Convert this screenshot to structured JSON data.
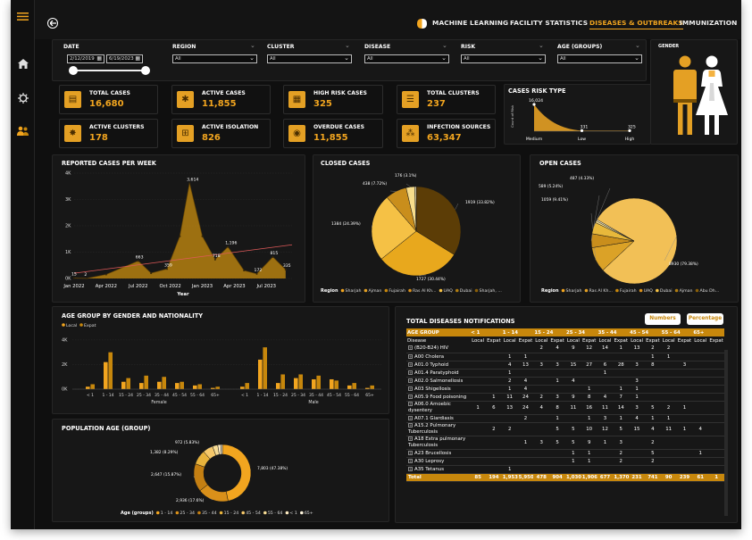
{
  "nav": {
    "tabs": [
      {
        "label": "MACHINE LEARNING",
        "active": false
      },
      {
        "label": "FACILITY STATISTICS",
        "active": false
      },
      {
        "label": "DISEASES & OUTBREAKS",
        "active": true
      },
      {
        "label": "IMMUNIZATION",
        "active": false
      }
    ]
  },
  "filters": {
    "date_label": "DATE",
    "date_from": "2/12/2019",
    "date_to": "6/19/2023",
    "dropdowns": [
      {
        "label": "REGION",
        "value": "All"
      },
      {
        "label": "CLUSTER",
        "value": "All"
      },
      {
        "label": "DISEASE",
        "value": "All"
      },
      {
        "label": "RISK",
        "value": "All"
      },
      {
        "label": "AGE (GROUPS)",
        "value": "All"
      }
    ]
  },
  "gender_panel": {
    "title": "GENDER"
  },
  "kpis": [
    {
      "label": "TOTAL CASES",
      "value": "16,680",
      "icon": "document-icon"
    },
    {
      "label": "ACTIVE CASES",
      "value": "11,855",
      "icon": "virus-icon"
    },
    {
      "label": "HIGH RISK CASES",
      "value": "325",
      "icon": "warning-icon"
    },
    {
      "label": "TOTAL CLUSTERS",
      "value": "237",
      "icon": "clipboard-icon"
    },
    {
      "label": "ACTIVE CLUSTERS",
      "value": "178",
      "icon": "cluster-icon"
    },
    {
      "label": "ACTIVE ISOLATION",
      "value": "826",
      "icon": "isolation-icon"
    },
    {
      "label": "OVERDUE CASES",
      "value": "11,855",
      "icon": "alarm-icon"
    },
    {
      "label": "INFECTION SOURCES",
      "value": "63,347",
      "icon": "source-icon"
    }
  ],
  "risk_chart": {
    "title": "CASES RISK TYPE",
    "ylabel": "Count of Risk",
    "categories": [
      "Medium",
      "Low",
      "High"
    ],
    "values": [
      16024,
      331,
      325
    ],
    "value_labels": [
      "16,024",
      "331",
      "325"
    ]
  },
  "weekly_chart": {
    "title": "REPORTED CASES PER WEEK",
    "xlabel": "Year",
    "y_ticks": [
      "0K",
      "1K",
      "2K",
      "3K",
      "4K"
    ],
    "x_ticks": [
      "Jan 2022",
      "Apr 2022",
      "Jul 2022",
      "Oct 2022",
      "Jan 2023",
      "Apr 2023",
      "Jul 2023"
    ],
    "points": [
      [
        0,
        15
      ],
      [
        0.4,
        2
      ],
      [
        1,
        150
      ],
      [
        2,
        663
      ],
      [
        2.4,
        200
      ],
      [
        2.9,
        359
      ],
      [
        3.3,
        1600
      ],
      [
        3.6,
        3614
      ],
      [
        4.0,
        1600
      ],
      [
        4.4,
        718
      ],
      [
        4.8,
        1196
      ],
      [
        5.3,
        300
      ],
      [
        5.7,
        172
      ],
      [
        6.2,
        815
      ],
      [
        6.6,
        335
      ]
    ],
    "point_labels": [
      {
        "i": 0,
        "text": "15"
      },
      {
        "i": 1,
        "text": "2"
      },
      {
        "i": 3,
        "text": "663"
      },
      {
        "i": 5,
        "text": "359"
      },
      {
        "i": 7,
        "text": "3,614"
      },
      {
        "i": 9,
        "text": "718"
      },
      {
        "i": 10,
        "text": "1,196"
      },
      {
        "i": 12,
        "text": "172"
      },
      {
        "i": 13,
        "text": "815"
      },
      {
        "i": 14,
        "text": "335"
      }
    ],
    "trend": [
      [
        0,
        200
      ],
      [
        6.8,
        1280
      ]
    ],
    "x_max": 6.8,
    "y_max": 4000
  },
  "closed_cases": {
    "title": "CLOSED CASES",
    "legend_title": "Region",
    "legend": [
      "Sharjah",
      "Ajman",
      "Fujairah",
      "Ras Al Kh...",
      "UAQ",
      "Dubai",
      "Sharjah, ..."
    ],
    "slices": [
      {
        "value": 1919,
        "label": "1919 (33.82%)",
        "color": "#5c3d06"
      },
      {
        "value": 1727,
        "label": "1727 (30.44%)",
        "color": "#e8a81d"
      },
      {
        "value": 1384,
        "label": "1384 (24.39%)",
        "color": "#f5c145"
      },
      {
        "value": 438,
        "label": "438 (7.72%)",
        "color": "#c98e1c"
      },
      {
        "value": 176,
        "label": "176 (3.1%)",
        "color": "#f7dd8b"
      },
      {
        "value": 30,
        "label": "",
        "color": "#fff3c8"
      }
    ]
  },
  "open_cases": {
    "title": "OPEN CASES",
    "legend_title": "Region",
    "legend": [
      "Sharjah",
      "Ras Al Kh...",
      "Fujairah",
      "UAQ",
      "Dubai",
      "Ajman",
      "Abu Dh..."
    ],
    "slices": [
      {
        "value": 8930,
        "label": "8930 (79.38%)",
        "color": "#f2c056"
      },
      {
        "value": 1059,
        "label": "1059 (9.41%)",
        "color": "#dba227"
      },
      {
        "value": 589,
        "label": "589 (5.24%)",
        "color": "#c98e1c"
      },
      {
        "value": 487,
        "label": "487 (4.33%)",
        "color": "#e8b83b"
      },
      {
        "value": 80,
        "label": "",
        "color": "#f7dd8b"
      },
      {
        "value": 60,
        "label": "",
        "color": "#fff3c8"
      }
    ]
  },
  "age_gender_chart": {
    "title": "AGE GROUP BY GENDER AND NATIONALITY",
    "legend": [
      {
        "name": "Local",
        "color": "#f2a51f"
      },
      {
        "name": "Expat",
        "color": "#c7870c"
      }
    ],
    "y_ticks": [
      "0K",
      "2K",
      "4K"
    ],
    "categories": [
      "< 1",
      "1 - 14",
      "15 - 24",
      "25 - 34",
      "35 - 44",
      "45 - 54",
      "55 - 64",
      "65+"
    ],
    "groups": [
      "Female",
      "Male"
    ],
    "female_local": [
      0.2,
      2.2,
      0.6,
      0.5,
      0.6,
      0.5,
      0.3,
      0.1
    ],
    "female_expat": [
      0.4,
      3.0,
      0.9,
      1.1,
      1.0,
      0.6,
      0.4,
      0.2
    ],
    "male_local": [
      0.2,
      2.4,
      0.5,
      0.9,
      0.8,
      0.8,
      0.3,
      0.1
    ],
    "male_expat": [
      0.5,
      3.4,
      1.2,
      1.2,
      1.1,
      0.7,
      0.5,
      0.3
    ],
    "y_max": 4.5
  },
  "population_age": {
    "title": "POPULATION AGE (GROUP)",
    "legend_title": "Age (groups)",
    "legend": [
      "1 - 14",
      "25 - 34",
      "35 - 44",
      "15 - 24",
      "45 - 54",
      "55 - 64",
      "< 1",
      "65+"
    ],
    "slices": [
      {
        "value": 7803,
        "label": "7,803 (47.38%)",
        "color": "#f2a51f"
      },
      {
        "value": 2936,
        "label": "2,936 (17.6%)",
        "color": "#d9901a"
      },
      {
        "value": 2647,
        "label": "2,647 (15.87%)",
        "color": "#c47f12"
      },
      {
        "value": 1382,
        "label": "1,382 (8.29%)",
        "color": "#e8b33c"
      },
      {
        "value": 972,
        "label": "972 (5.83%)",
        "color": "#f5c86a"
      },
      {
        "value": 500,
        "label": "",
        "color": "#f7dc95"
      },
      {
        "value": 300,
        "label": "",
        "color": "#fbe9c0"
      },
      {
        "value": 140,
        "label": "",
        "color": "#fff6dd"
      }
    ]
  },
  "notifications": {
    "title": "TOTAL DISEASES NOTIFICATIONS",
    "btn_numbers": "Numbers",
    "btn_percentage": "Percentage",
    "header_age": "AGE GROUP",
    "header_disease": "Disease",
    "age_groups": [
      "< 1",
      "1 - 14",
      "15 - 24",
      "25 - 34",
      "35 - 44",
      "45 - 54",
      "55 - 64",
      "65+"
    ],
    "sub_headers": [
      "Local",
      "Expat"
    ],
    "rows": [
      {
        "disease": "(B20-B24) HIV",
        "vals": [
          "",
          "",
          "",
          "",
          "2",
          "4",
          "9",
          "12",
          "14",
          "1",
          "13",
          "2",
          "2",
          "",
          "",
          ""
        ]
      },
      {
        "disease": "A00 Cholera",
        "vals": [
          "",
          "",
          "1",
          "1",
          "",
          "",
          "",
          "",
          "",
          "",
          "",
          "1",
          "1",
          "",
          "",
          ""
        ]
      },
      {
        "disease": "A01.0 Typhoid",
        "vals": [
          "",
          "",
          "4",
          "13",
          "3",
          "3",
          "15",
          "27",
          "6",
          "28",
          "3",
          "8",
          "",
          "3",
          "",
          ""
        ]
      },
      {
        "disease": "A01.4 Paratyphoid",
        "vals": [
          "",
          "",
          "1",
          "",
          "",
          "",
          "",
          "",
          "1",
          "",
          "",
          "",
          "",
          "",
          "",
          ""
        ]
      },
      {
        "disease": "A02.0 Salmonellosis",
        "vals": [
          "",
          "",
          "2",
          "4",
          "",
          "1",
          "4",
          "",
          "",
          "",
          "3",
          "",
          "",
          "",
          "",
          ""
        ]
      },
      {
        "disease": "A03 Shigellosis",
        "vals": [
          "",
          "",
          "1",
          "4",
          "",
          "",
          "",
          "1",
          "",
          "1",
          "1",
          "",
          "",
          "",
          "",
          ""
        ]
      },
      {
        "disease": "A05.9 Food poisoning",
        "vals": [
          "",
          "1",
          "11",
          "24",
          "2",
          "3",
          "9",
          "8",
          "4",
          "7",
          "1",
          "",
          "",
          "",
          "",
          ""
        ]
      },
      {
        "disease": "A06.0 Amoebic dysentery",
        "vals": [
          "1",
          "6",
          "13",
          "24",
          "4",
          "8",
          "11",
          "16",
          "11",
          "14",
          "3",
          "5",
          "2",
          "1",
          "",
          ""
        ]
      },
      {
        "disease": "A07.1 Giardiasis",
        "vals": [
          "",
          "",
          "",
          "2",
          "",
          "1",
          "",
          "1",
          "3",
          "1",
          "4",
          "1",
          "1",
          "",
          "",
          ""
        ]
      },
      {
        "disease": "A15.2 Pulmonary Tuberculosis",
        "vals": [
          "",
          "2",
          "2",
          "",
          "",
          "5",
          "5",
          "10",
          "12",
          "5",
          "15",
          "4",
          "11",
          "1",
          "4",
          ""
        ]
      },
      {
        "disease": "A18 Extra pulmonary Tuberculosis",
        "vals": [
          "",
          "",
          "",
          "1",
          "3",
          "5",
          "5",
          "9",
          "1",
          "3",
          "",
          "2",
          "",
          "",
          "",
          ""
        ]
      },
      {
        "disease": "A23 Brucellosis",
        "vals": [
          "",
          "",
          "",
          "",
          "",
          "",
          "1",
          "1",
          "",
          "2",
          "",
          "5",
          "",
          "",
          "1",
          ""
        ]
      },
      {
        "disease": "A30 Leprosy",
        "vals": [
          "",
          "",
          "",
          "",
          "",
          "",
          "1",
          "1",
          "",
          "2",
          "",
          "2",
          "",
          "",
          "",
          ""
        ]
      },
      {
        "disease": "A35 Tetanus",
        "vals": [
          "",
          "",
          "1",
          "",
          "",
          "",
          "",
          "",
          "",
          "",
          "",
          "",
          "",
          "",
          "",
          ""
        ]
      }
    ],
    "total_label": "Total",
    "totals": [
      "85",
      "194",
      "1,953",
      "5,950",
      "478",
      "904",
      "1,030",
      "1,906",
      "677",
      "1,370",
      "231",
      "741",
      "90",
      "239",
      "61",
      "1"
    ]
  }
}
